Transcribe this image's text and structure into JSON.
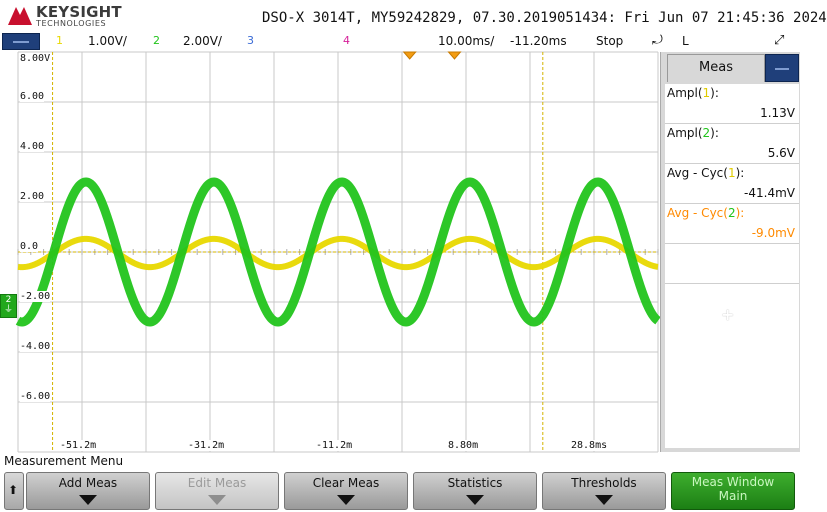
{
  "header": {
    "brand_name": "KEYSIGHT",
    "brand_sub": "TECHNOLOGIES",
    "model_line": "DSO-X 3014T, MY59242829, 07.30.2019051434: Fri Jun 07 21:45:36 2024"
  },
  "channel_bar": {
    "ch1_number": "1",
    "ch1_scale": "1.00V/",
    "ch2_number": "2",
    "ch2_scale": "2.00V/",
    "ch3_number": "3",
    "ch4_number": "4",
    "timebase": "10.00ms/",
    "delay": "-11.20ms",
    "run_state": "Stop",
    "trigger_edge_icon": "rising-edge-icon",
    "trigger_coupling": "L",
    "colors": {
      "ch1": "#e8d800",
      "ch2": "#22c41c",
      "ch3": "#3a6bd6",
      "ch4": "#d61f99"
    }
  },
  "graticule": {
    "y_labels": [
      "8.00V",
      "6.00",
      "4.00",
      "2.00",
      "0.0",
      "-2.00",
      "-4.00",
      "-6.00"
    ],
    "x_labels": [
      "-51.2m",
      "-31.2m",
      "-11.2m",
      "8.80m",
      "28.8ms"
    ],
    "ground_marker": "2"
  },
  "measurements": {
    "tab_label": "Meas",
    "items": [
      {
        "name": "Ampl(",
        "channel": "1",
        "close": "):",
        "value": "1.13V"
      },
      {
        "name": "Ampl(",
        "channel": "2",
        "close": "):",
        "value": "5.6V"
      },
      {
        "name": "Avg - Cyc(",
        "channel": "1",
        "close": "):",
        "value": "-41.4mV"
      },
      {
        "name": "Avg - Cyc(",
        "channel": "2",
        "close": "):",
        "value": "-9.0mV"
      }
    ],
    "add_symbol": "+"
  },
  "menu": {
    "title": "Measurement Menu",
    "keys": [
      {
        "label": "Add Meas"
      },
      {
        "label": "Edit Meas"
      },
      {
        "label": "Clear Meas"
      },
      {
        "label": "Statistics"
      },
      {
        "label": "Thresholds"
      },
      {
        "label": "Meas Window",
        "label2": "Main"
      }
    ]
  },
  "chart_data": {
    "type": "line",
    "xlabel": "",
    "ylabel": "",
    "x_ticks": [
      "-51.2m",
      "-31.2m",
      "-11.2m",
      "8.80m",
      "28.8ms"
    ],
    "y_ticks": [
      "8.00V",
      "6.00",
      "4.00",
      "2.00",
      "0.0",
      "-2.00",
      "-4.00",
      "-6.00"
    ],
    "ylim": [
      -8,
      8
    ],
    "xlim_ms": [
      -61.2,
      38.8
    ],
    "grid": true,
    "series": [
      {
        "name": "1",
        "color": "#e8d800",
        "amplitude_v": 0.565,
        "offset_v": -0.04,
        "period_ms": 20.0,
        "zero_cross_ms": -55.6
      },
      {
        "name": "2",
        "color": "#22c41c",
        "amplitude_v": 2.8,
        "offset_v": 0.0,
        "period_ms": 20.0,
        "zero_cross_ms": -55.6
      }
    ]
  }
}
